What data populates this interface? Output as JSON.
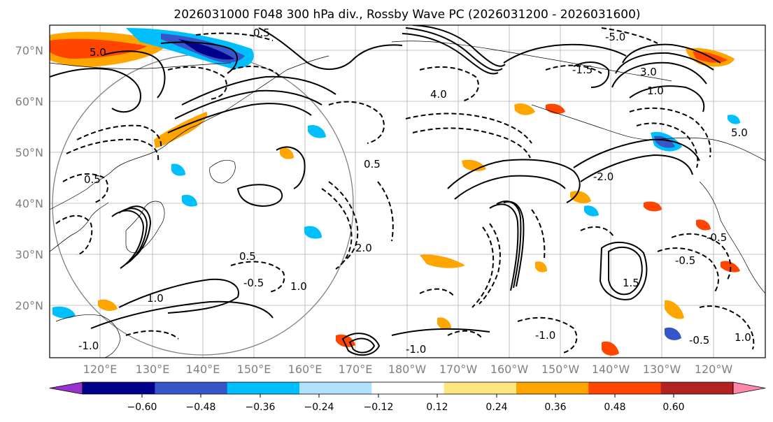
{
  "title": "2026031000 F048 300 hPa div., Rossby Wave PC (2026031200 - 2026031600)",
  "lat_ticks": [
    "70°N",
    "60°N",
    "50°N",
    "40°N",
    "30°N",
    "20°N"
  ],
  "lon_ticks": [
    "120°E",
    "130°E",
    "140°E",
    "150°E",
    "160°E",
    "170°E",
    "180°W",
    "170°W",
    "160°W",
    "150°W",
    "140°W",
    "130°W",
    "120°W"
  ],
  "colorbar": {
    "ticks": [
      "−0.60",
      "−0.48",
      "−0.36",
      "−0.24",
      "−0.12",
      "0.12",
      "0.24",
      "0.36",
      "0.48",
      "0.60"
    ],
    "colors": [
      "#9932cc",
      "#00008b",
      "#3656c8",
      "#00bfff",
      "#b0e2ff",
      "#ffffff",
      "#ffe680",
      "#ffa500",
      "#ff4500",
      "#b22222",
      "#ff88aa"
    ]
  },
  "contour_labels": [
    "0.5",
    "5.0",
    "3.0",
    "4.0",
    "1.0",
    "-1.0",
    "-0.5",
    "1.5",
    "-1.5",
    "2.0",
    "-2.0",
    "0.5",
    "1.0",
    "-0.5",
    "-1.0",
    "1.0",
    "-0.5",
    "0.5",
    "1.0",
    "-1.0",
    "-0.5",
    "0.5",
    "5.0",
    "-5.0"
  ]
}
